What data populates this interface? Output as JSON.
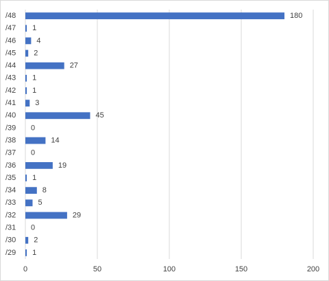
{
  "chart_data": {
    "type": "bar",
    "orientation": "horizontal",
    "categories": [
      "/48",
      "/47",
      "/46",
      "/45",
      "/44",
      "/43",
      "/42",
      "/41",
      "/40",
      "/39",
      "/38",
      "/37",
      "/36",
      "/35",
      "/34",
      "/33",
      "/32",
      "/31",
      "/30",
      "/29"
    ],
    "values": [
      180,
      1,
      4,
      2,
      27,
      1,
      1,
      3,
      45,
      0,
      14,
      0,
      19,
      1,
      8,
      5,
      29,
      0,
      2,
      1
    ],
    "color": "#4472c4",
    "xlim": [
      0,
      200
    ],
    "xticks": [
      0,
      50,
      100,
      150,
      200
    ],
    "grid": true
  }
}
